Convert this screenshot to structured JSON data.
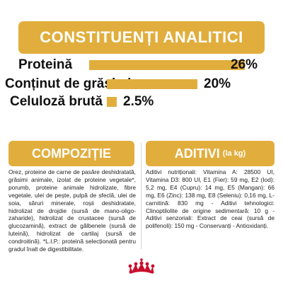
{
  "header": {
    "title": "CONSTITUENȚI ANALITICI"
  },
  "analytics": [
    {
      "label": "Proteină",
      "value": "26%",
      "percent": 26
    },
    {
      "label": "Conținut de grăsimi",
      "value": "20%",
      "percent": 20
    },
    {
      "label": "Celuloză brută",
      "value": "2.5%",
      "percent": 2.5
    }
  ],
  "composition": {
    "title": "COMPOZIȚIE",
    "text": "Orez, proteine de carne de pasăre deshidratată, grăsimi animale, izolat de proteine vegetale*, porumb, proteine animale hidrolizate, fibre vegetale, ulei de pește, pulpă de sfeclă, ulei de soia, săruri minerale, roșii deshidratate, hidrolizat de drojdie (sursă de mano-oligo-zaharide), hidrolizat de crustacee (sursă de glucozamină), extract de gălbenele (sursă de luteină), hidrolizat de cartilaj (sursă de condroitină). *L.I.P.: proteină selecționată pentru gradul înalt de digestibilitate."
  },
  "additives": {
    "title": "ADITIVI",
    "unit": "(la kg)",
    "text": "Aditivi nutriționali: Vitamina A: 28500 UI, Vitamina D3: 800 UI, E1 (Fier): 59 mg, E2 (Iod): 5,2 mg, E4 (Cupru): 14 mg, E5 (Mangan): 66 mg, E6 (Zinc): 138 mg, E8 (Seleniu): 0,16 mg, L-carnitină: 830 mg - Aditivi tehnologici: Clinoptilolite de origine sedimentară: 10 g - Aditivi senzoriali: Extract de ceai (sursă de polifenoli): 150 mg - Conservanți - Antioxidanți."
  },
  "logo": {
    "name": "crown-logo-icon"
  },
  "colors": {
    "accent": "#e1ae3d",
    "text": "#111111",
    "logo": "#c8102e"
  }
}
